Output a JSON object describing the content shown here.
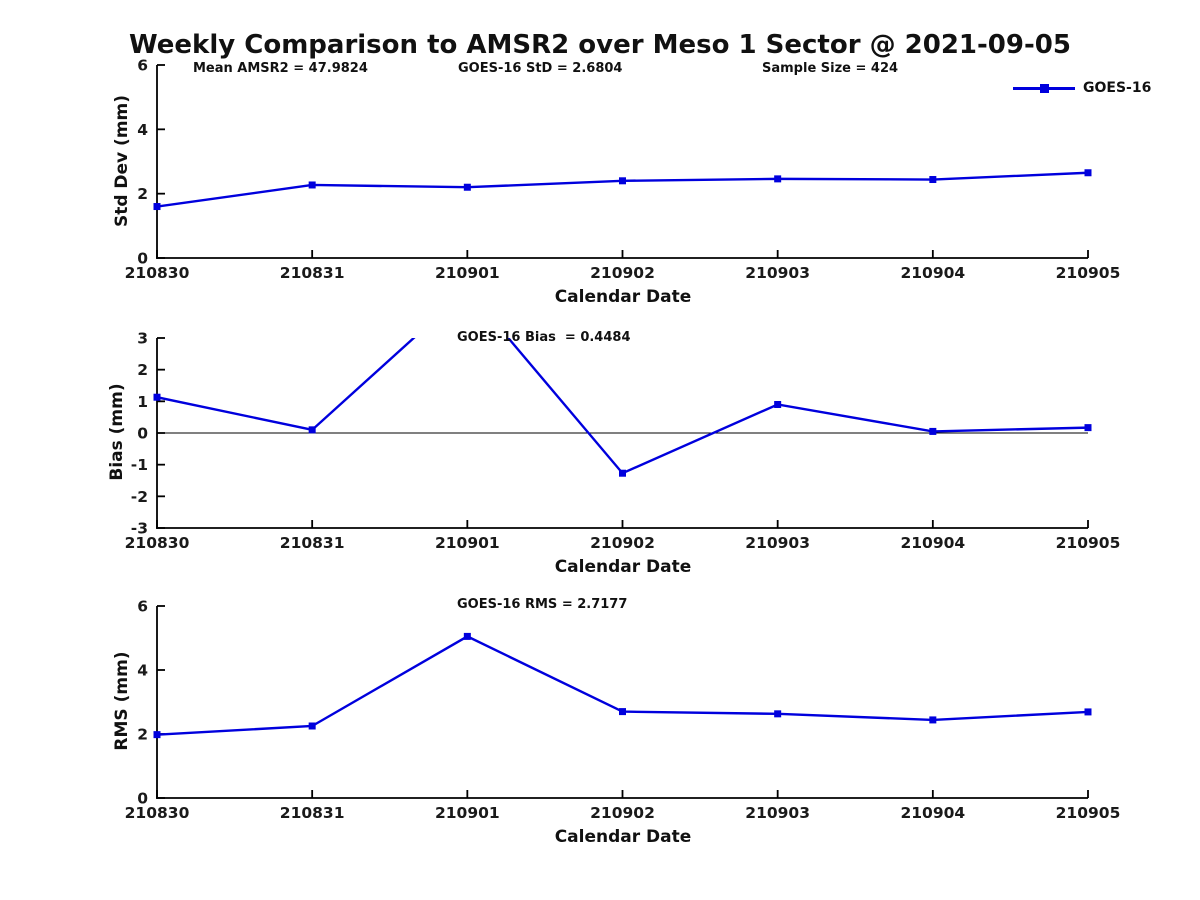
{
  "title": "Weekly Comparison to AMSR2 over Meso 1 Sector @ 2021-09-05",
  "stats": {
    "mean_amsr2": "Mean AMSR2 = 47.9824",
    "goes16_std": "GOES-16 StD = 2.6804",
    "sample_size": "Sample Size = 424"
  },
  "legend": {
    "label": "GOES-16"
  },
  "colors": {
    "line": "#0000dd",
    "axis": "#000000",
    "text": "#1a1a1a"
  },
  "chart_data": [
    {
      "type": "line",
      "name": "std-dev",
      "title": "",
      "ylabel": "Std Dev (mm)",
      "xlabel": "Calendar Date",
      "categories": [
        "210830",
        "210831",
        "210901",
        "210902",
        "210903",
        "210904",
        "210905"
      ],
      "series": [
        {
          "name": "GOES-16",
          "values": [
            1.6,
            2.27,
            2.2,
            2.4,
            2.46,
            2.44,
            2.65
          ]
        }
      ],
      "ylim": [
        0,
        6
      ],
      "yticks": [
        0,
        2,
        4,
        6
      ],
      "grid": false,
      "legend_position": "upper-right-outside",
      "annotations": [
        "Mean AMSR2 = 47.9824",
        "GOES-16 StD = 2.6804",
        "Sample Size = 424"
      ]
    },
    {
      "type": "line",
      "name": "bias",
      "title": "",
      "ylabel": "Bias (mm)",
      "xlabel": "Calendar Date",
      "categories": [
        "210830",
        "210831",
        "210901",
        "210902",
        "210903",
        "210904",
        "210905"
      ],
      "series": [
        {
          "name": "GOES-16",
          "values": [
            1.13,
            0.1,
            4.53,
            -1.27,
            0.9,
            0.05,
            0.17
          ]
        }
      ],
      "ylim": [
        -3,
        3
      ],
      "yticks": [
        -3,
        -2,
        -1,
        0,
        1,
        2,
        3
      ],
      "grid": false,
      "zero_line": true,
      "clipped_note": "value at 210901 exceeds axis top and is clipped",
      "annotation": "GOES-16 Bias  = 0.4484"
    },
    {
      "type": "line",
      "name": "rms",
      "title": "",
      "ylabel": "RMS (mm)",
      "xlabel": "Calendar Date",
      "categories": [
        "210830",
        "210831",
        "210901",
        "210902",
        "210903",
        "210904",
        "210905"
      ],
      "series": [
        {
          "name": "GOES-16",
          "values": [
            1.98,
            2.25,
            5.05,
            2.7,
            2.63,
            2.44,
            2.69
          ]
        }
      ],
      "ylim": [
        0,
        6
      ],
      "yticks": [
        0,
        2,
        4,
        6
      ],
      "grid": false,
      "annotation": "GOES-16 RMS = 2.7177"
    }
  ]
}
